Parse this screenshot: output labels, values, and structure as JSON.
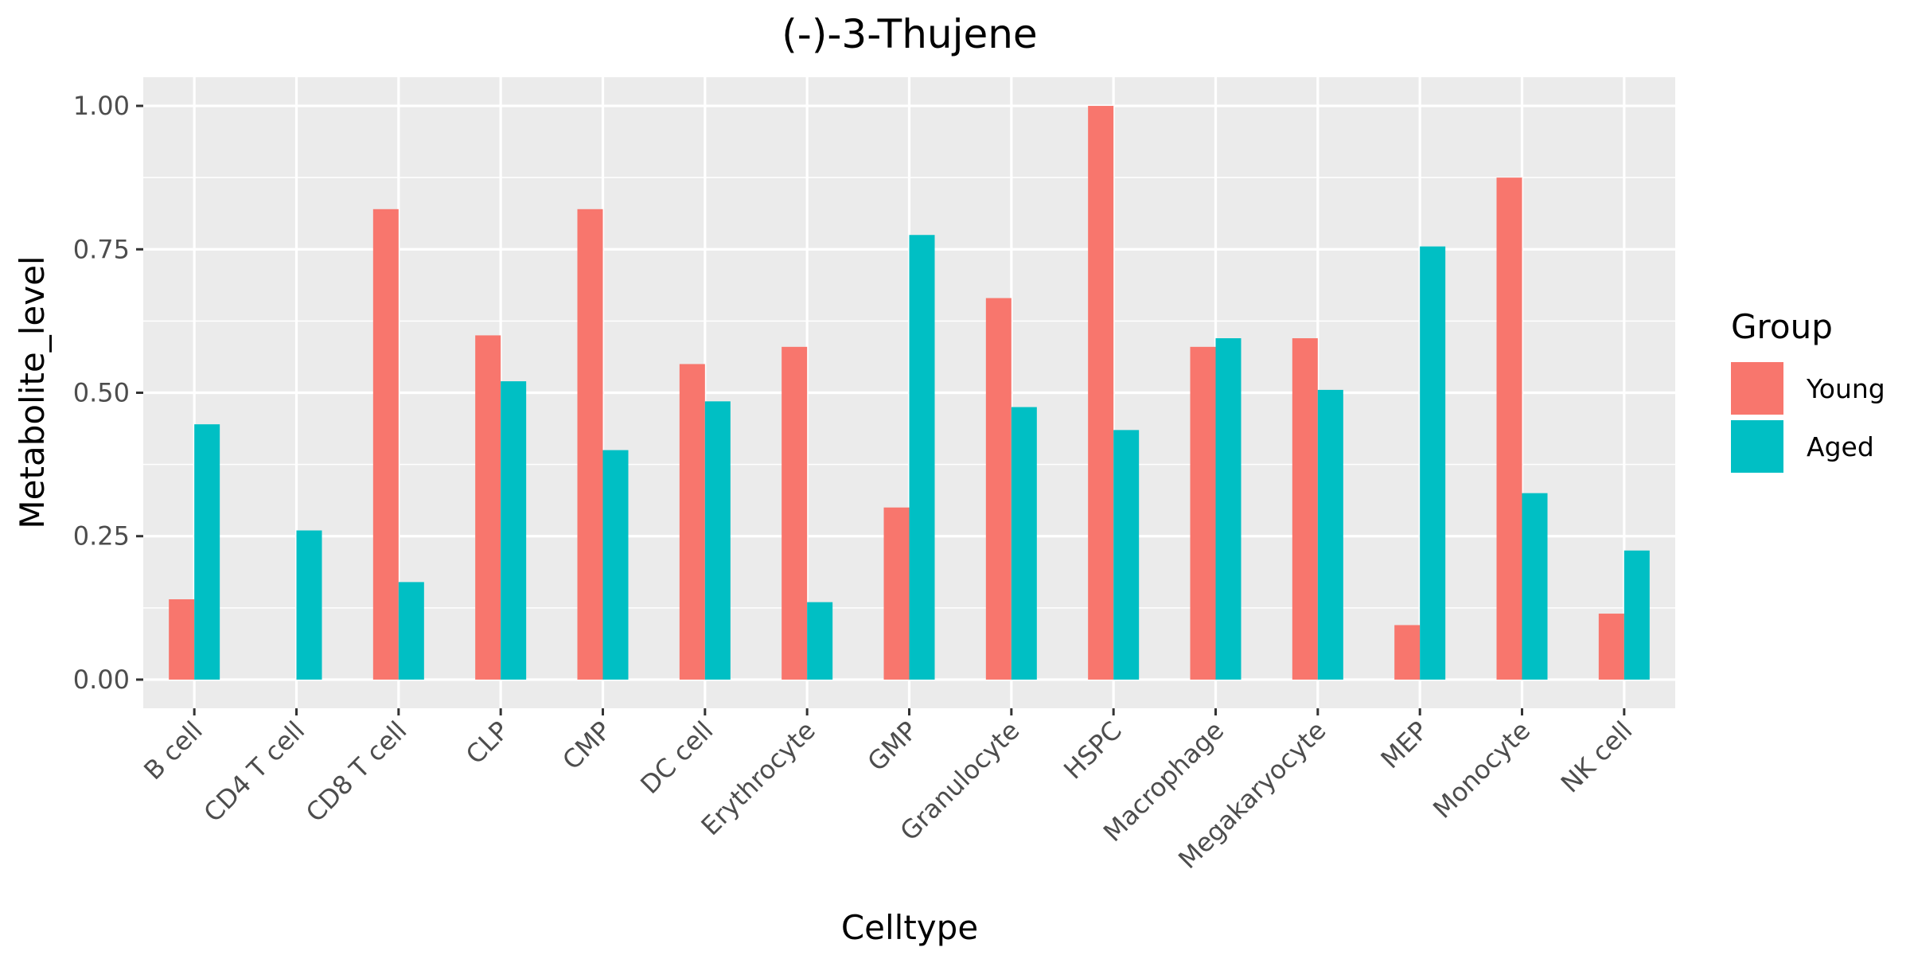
{
  "chart_data": {
    "type": "bar",
    "title": "(-)-3-Thujene",
    "xlabel": "Celltype",
    "ylabel": "Metabolite_level",
    "ylim": [
      0,
      1.05
    ],
    "y_ticks": [
      "0.00",
      "0.25",
      "0.50",
      "0.75",
      "1.00"
    ],
    "grid": true,
    "legend_position": "right",
    "legend_title": "Group",
    "categories": [
      "B cell",
      "CD4 T cell",
      "CD8 T cell",
      "CLP",
      "CMP",
      "DC cell",
      "Erythrocyte",
      "GMP",
      "Granulocyte",
      "HSPC",
      "Macrophage",
      "Megakaryocyte",
      "MEP",
      "Monocyte",
      "NK cell"
    ],
    "series": [
      {
        "name": "Young",
        "color": "#F8766D",
        "values": [
          0.14,
          0.0,
          0.82,
          0.6,
          0.82,
          0.55,
          0.58,
          0.3,
          0.665,
          1.0,
          0.58,
          0.595,
          0.095,
          0.875,
          0.115
        ]
      },
      {
        "name": "Aged",
        "color": "#00BFC4",
        "values": [
          0.445,
          0.26,
          0.17,
          0.52,
          0.4,
          0.485,
          0.135,
          0.775,
          0.475,
          0.435,
          0.595,
          0.505,
          0.755,
          0.325,
          0.225
        ]
      }
    ]
  }
}
